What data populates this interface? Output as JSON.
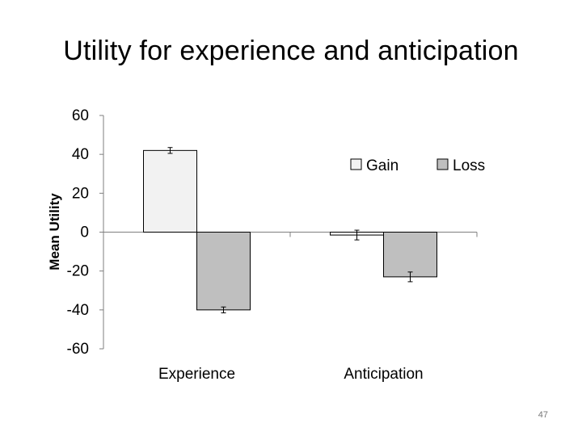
{
  "slide": {
    "title": "Utility for experience and anticipation",
    "page_number": "47"
  },
  "chart_data": {
    "type": "bar",
    "title": "Utility for experience and anticipation",
    "xlabel": "",
    "ylabel": "Mean Utility",
    "ylim": [
      -60,
      60
    ],
    "yticks": [
      60,
      40,
      20,
      0,
      -20,
      -40,
      -60
    ],
    "categories": [
      "Experience",
      "Anticipation"
    ],
    "series": [
      {
        "name": "Gain",
        "values": [
          42,
          -1.5
        ],
        "error": [
          1.5,
          2.5
        ],
        "color": "#f2f2f2"
      },
      {
        "name": "Loss",
        "values": [
          -40,
          -23
        ],
        "error": [
          1.5,
          2.5
        ],
        "color": "#bfbfbf"
      }
    ],
    "legend": "top-right",
    "grid": false
  }
}
